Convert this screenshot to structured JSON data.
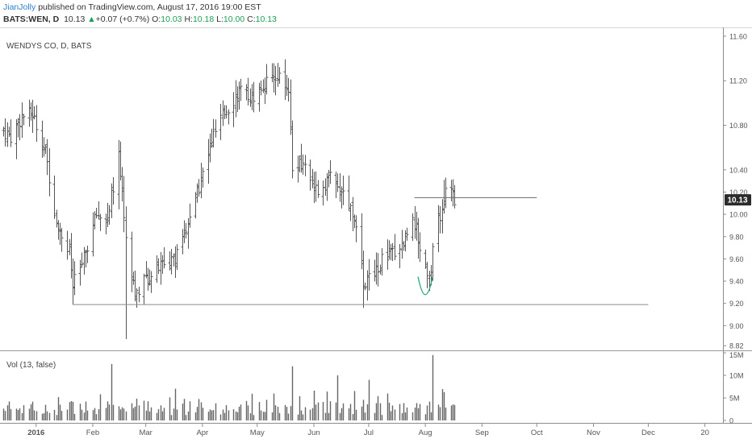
{
  "header": {
    "author": "JianJolly",
    "published_text": "published on TradingView.com, August 17, 2016 19:00 EST",
    "symbol": "BATS:WEN, D",
    "last": "10.13",
    "change": "+0.07 (+0.7%)",
    "open_label": "O:",
    "open": "10.03",
    "high_label": "H:",
    "high": "10.18",
    "low_label": "L:",
    "low": "10.00",
    "close_label": "C:",
    "close": "10.13"
  },
  "colors": {
    "positive": "#1d9e55",
    "author": "#2c7fc9",
    "bars": "#555555",
    "support_line": "#8a8a8a",
    "curve": "#2aa876",
    "price_tag_bg": "#2b2b2b"
  },
  "chart_data": [
    {
      "type": "ohlc",
      "title": "WENDYS CO, D, BATS",
      "ylim": [
        8.8,
        11.65
      ],
      "y_ticks": [
        "11.60",
        "11.20",
        "10.80",
        "10.40",
        "10.20",
        "10.00",
        "9.80",
        "9.60",
        "9.40",
        "9.20",
        "9.00",
        "8.82"
      ],
      "last_price_label": "10.13",
      "x_ticks": [
        "2016",
        "Feb",
        "Mar",
        "Apr",
        "May",
        "Jun",
        "Jul",
        "Aug",
        "Sep",
        "Oct",
        "Nov",
        "Dec",
        "20"
      ],
      "x_range": [
        "2015-12-14",
        "2017-01-10"
      ],
      "support_level": 9.19,
      "support_range": [
        "2016-01-21",
        "2016-12-01"
      ],
      "resistance_level": 10.15,
      "resistance_range": [
        "2016-07-26",
        "2016-10-01"
      ],
      "rounding_bottom_annotation": [
        "2016-07-28",
        "2016-08-05"
      ],
      "close_anchors": [
        {
          "date": "2015-12-14",
          "close": 10.75
        },
        {
          "date": "2015-12-18",
          "close": 10.7
        },
        {
          "date": "2015-12-24",
          "close": 10.88
        },
        {
          "date": "2015-12-30",
          "close": 10.9
        },
        {
          "date": "2016-01-06",
          "close": 10.55
        },
        {
          "date": "2016-01-12",
          "close": 9.95
        },
        {
          "date": "2016-01-19",
          "close": 9.65
        },
        {
          "date": "2016-01-21",
          "close": 9.35
        },
        {
          "date": "2016-01-27",
          "close": 9.6
        },
        {
          "date": "2016-02-03",
          "close": 10.0
        },
        {
          "date": "2016-02-09",
          "close": 9.95
        },
        {
          "date": "2016-02-15",
          "close": 10.55
        },
        {
          "date": "2016-02-19",
          "close": 9.8
        },
        {
          "date": "2016-02-24",
          "close": 9.3
        },
        {
          "date": "2016-03-03",
          "close": 9.45
        },
        {
          "date": "2016-03-10",
          "close": 9.55
        },
        {
          "date": "2016-03-17",
          "close": 9.6
        },
        {
          "date": "2016-03-24",
          "close": 9.9
        },
        {
          "date": "2016-03-31",
          "close": 10.3
        },
        {
          "date": "2016-04-07",
          "close": 10.7
        },
        {
          "date": "2016-04-14",
          "close": 10.95
        },
        {
          "date": "2016-04-21",
          "close": 11.1
        },
        {
          "date": "2016-04-28",
          "close": 11.05
        },
        {
          "date": "2016-05-05",
          "close": 11.15
        },
        {
          "date": "2016-05-12",
          "close": 11.25
        },
        {
          "date": "2016-05-18",
          "close": 11.05
        },
        {
          "date": "2016-05-20",
          "close": 10.4
        },
        {
          "date": "2016-05-27",
          "close": 10.45
        },
        {
          "date": "2016-06-03",
          "close": 10.2
        },
        {
          "date": "2016-06-10",
          "close": 10.35
        },
        {
          "date": "2016-06-17",
          "close": 10.2
        },
        {
          "date": "2016-06-24",
          "close": 9.95
        },
        {
          "date": "2016-06-28",
          "close": 9.35
        },
        {
          "date": "2016-07-06",
          "close": 9.55
        },
        {
          "date": "2016-07-13",
          "close": 9.65
        },
        {
          "date": "2016-07-20",
          "close": 9.75
        },
        {
          "date": "2016-07-25",
          "close": 10.0
        },
        {
          "date": "2016-07-29",
          "close": 9.7
        },
        {
          "date": "2016-08-03",
          "close": 9.45
        },
        {
          "date": "2016-08-08",
          "close": 9.95
        },
        {
          "date": "2016-08-12",
          "close": 10.2
        },
        {
          "date": "2016-08-17",
          "close": 10.13
        }
      ]
    },
    {
      "type": "bar",
      "title": "Vol (13, false)",
      "ylim": [
        0,
        15
      ],
      "y_ticks": [
        "15M",
        "10M",
        "5M",
        "0"
      ],
      "spike_days": [
        {
          "date": "2016-02-11",
          "volume": 12.5
        },
        {
          "date": "2016-05-20",
          "volume": 12.0
        },
        {
          "date": "2016-08-05",
          "volume": 14.5
        },
        {
          "date": "2016-06-14",
          "volume": 10.0
        },
        {
          "date": "2016-07-01",
          "volume": 9.0
        }
      ]
    }
  ]
}
